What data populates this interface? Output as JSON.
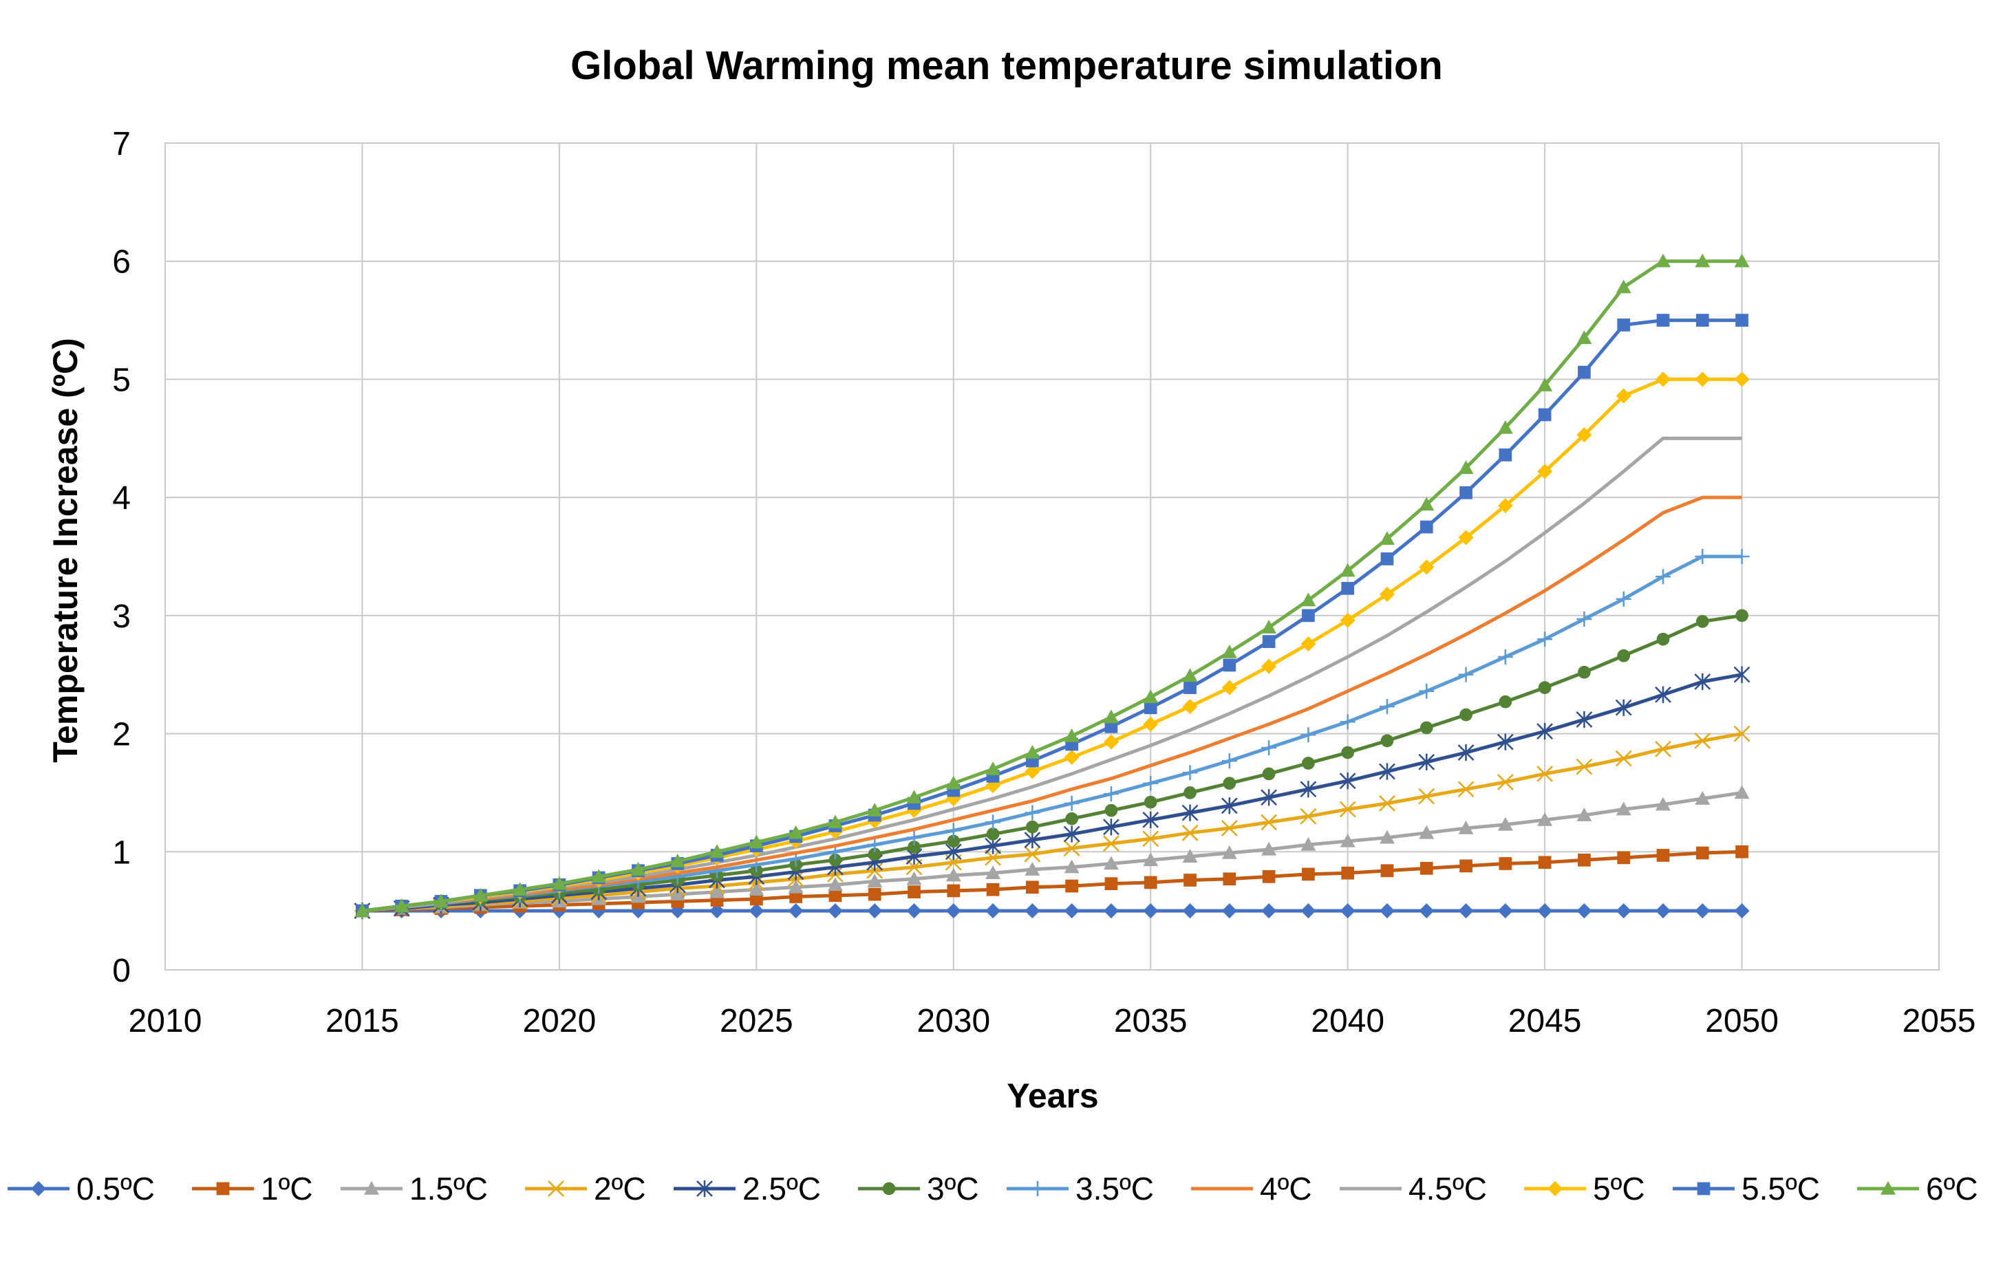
{
  "chart_data": {
    "type": "line",
    "title": "Global Warming mean temperature simulation",
    "xlabel": "Years",
    "ylabel": "Temperature Increase (ºC)",
    "xlim": [
      2010,
      2055
    ],
    "ylim": [
      0,
      7
    ],
    "x_ticks": [
      "2010",
      "2015",
      "2020",
      "2025",
      "2030",
      "2035",
      "2040",
      "2045",
      "2050",
      "2055"
    ],
    "y_ticks": [
      "0",
      "1",
      "2",
      "3",
      "4",
      "5",
      "6",
      "7"
    ],
    "grid": true,
    "legend_position": "bottom",
    "x": [
      2015,
      2016,
      2017,
      2018,
      2019,
      2020,
      2021,
      2022,
      2023,
      2024,
      2025,
      2026,
      2027,
      2028,
      2029,
      2030,
      2031,
      2032,
      2033,
      2034,
      2035,
      2036,
      2037,
      2038,
      2039,
      2040,
      2041,
      2042,
      2043,
      2044,
      2045,
      2046,
      2047,
      2048,
      2049,
      2050
    ],
    "series": [
      {
        "name": "0.5ºC",
        "color": "#4472C4",
        "marker": "diamond",
        "values": [
          0.5,
          0.5,
          0.5,
          0.5,
          0.5,
          0.5,
          0.5,
          0.5,
          0.5,
          0.5,
          0.5,
          0.5,
          0.5,
          0.5,
          0.5,
          0.5,
          0.5,
          0.5,
          0.5,
          0.5,
          0.5,
          0.5,
          0.5,
          0.5,
          0.5,
          0.5,
          0.5,
          0.5,
          0.5,
          0.5,
          0.5,
          0.5,
          0.5,
          0.5,
          0.5,
          0.5
        ]
      },
      {
        "name": "1ºC",
        "color": "#C55A11",
        "marker": "square",
        "values": [
          0.5,
          0.51,
          0.52,
          0.53,
          0.54,
          0.55,
          0.56,
          0.57,
          0.58,
          0.59,
          0.6,
          0.62,
          0.63,
          0.64,
          0.66,
          0.67,
          0.68,
          0.7,
          0.71,
          0.73,
          0.74,
          0.76,
          0.77,
          0.79,
          0.81,
          0.82,
          0.84,
          0.86,
          0.88,
          0.9,
          0.91,
          0.93,
          0.95,
          0.97,
          0.99,
          1.0
        ]
      },
      {
        "name": "1.5ºC",
        "color": "#A5A5A5",
        "marker": "triangle",
        "values": [
          0.5,
          0.52,
          0.53,
          0.55,
          0.57,
          0.58,
          0.6,
          0.62,
          0.64,
          0.66,
          0.68,
          0.7,
          0.72,
          0.75,
          0.77,
          0.8,
          0.82,
          0.85,
          0.87,
          0.9,
          0.93,
          0.96,
          0.99,
          1.02,
          1.06,
          1.09,
          1.12,
          1.16,
          1.2,
          1.23,
          1.27,
          1.31,
          1.36,
          1.4,
          1.45,
          1.5
        ]
      },
      {
        "name": "2ºC",
        "color": "#E6A817",
        "marker": "x",
        "values": [
          0.5,
          0.52,
          0.54,
          0.56,
          0.58,
          0.61,
          0.63,
          0.66,
          0.69,
          0.71,
          0.74,
          0.77,
          0.81,
          0.84,
          0.87,
          0.91,
          0.95,
          0.98,
          1.03,
          1.07,
          1.11,
          1.16,
          1.2,
          1.25,
          1.3,
          1.36,
          1.41,
          1.47,
          1.53,
          1.59,
          1.66,
          1.72,
          1.79,
          1.87,
          1.94,
          2.0
        ]
      },
      {
        "name": "2.5ºC",
        "color": "#2F4F8F",
        "marker": "star",
        "values": [
          0.5,
          0.52,
          0.55,
          0.57,
          0.6,
          0.63,
          0.66,
          0.69,
          0.72,
          0.76,
          0.79,
          0.83,
          0.87,
          0.91,
          0.96,
          1.0,
          1.05,
          1.1,
          1.15,
          1.21,
          1.27,
          1.33,
          1.39,
          1.46,
          1.53,
          1.6,
          1.68,
          1.76,
          1.84,
          1.93,
          2.02,
          2.12,
          2.22,
          2.33,
          2.44,
          2.5
        ]
      },
      {
        "name": "3ºC",
        "color": "#548235",
        "marker": "circle",
        "values": [
          0.5,
          0.53,
          0.56,
          0.59,
          0.62,
          0.65,
          0.68,
          0.72,
          0.76,
          0.8,
          0.84,
          0.89,
          0.93,
          0.98,
          1.04,
          1.09,
          1.15,
          1.21,
          1.28,
          1.35,
          1.42,
          1.5,
          1.58,
          1.66,
          1.75,
          1.84,
          1.94,
          2.05,
          2.16,
          2.27,
          2.39,
          2.52,
          2.66,
          2.8,
          2.95,
          3.0
        ]
      },
      {
        "name": "3.5ºC",
        "color": "#5B9BD5",
        "marker": "plus",
        "values": [
          0.5,
          0.53,
          0.56,
          0.6,
          0.63,
          0.67,
          0.71,
          0.75,
          0.79,
          0.84,
          0.89,
          0.94,
          1.0,
          1.06,
          1.12,
          1.18,
          1.25,
          1.33,
          1.41,
          1.49,
          1.58,
          1.67,
          1.77,
          1.88,
          1.99,
          2.1,
          2.23,
          2.36,
          2.5,
          2.65,
          2.8,
          2.97,
          3.14,
          3.33,
          3.5,
          3.5
        ]
      },
      {
        "name": "4ºC",
        "color": "#ED7D31",
        "marker": "none",
        "values": [
          0.5,
          0.53,
          0.57,
          0.6,
          0.64,
          0.68,
          0.72,
          0.77,
          0.82,
          0.87,
          0.93,
          0.99,
          1.05,
          1.12,
          1.19,
          1.27,
          1.35,
          1.43,
          1.53,
          1.62,
          1.73,
          1.84,
          1.96,
          2.08,
          2.21,
          2.36,
          2.51,
          2.67,
          2.84,
          3.02,
          3.21,
          3.42,
          3.64,
          3.87,
          4.0,
          4.0
        ]
      },
      {
        "name": "4.5ºC",
        "color": "#A5A5A5",
        "marker": "none",
        "values": [
          0.5,
          0.53,
          0.57,
          0.61,
          0.65,
          0.7,
          0.74,
          0.79,
          0.85,
          0.91,
          0.97,
          1.04,
          1.11,
          1.19,
          1.27,
          1.36,
          1.45,
          1.55,
          1.66,
          1.78,
          1.9,
          2.03,
          2.17,
          2.32,
          2.48,
          2.65,
          2.83,
          3.03,
          3.24,
          3.46,
          3.7,
          3.95,
          4.22,
          4.5,
          4.5,
          4.5
        ]
      },
      {
        "name": "5ºC",
        "color": "#FFC000",
        "marker": "diamond",
        "values": [
          0.5,
          0.54,
          0.58,
          0.62,
          0.66,
          0.71,
          0.76,
          0.82,
          0.88,
          0.95,
          1.02,
          1.09,
          1.17,
          1.26,
          1.35,
          1.45,
          1.56,
          1.68,
          1.8,
          1.93,
          2.08,
          2.23,
          2.39,
          2.57,
          2.76,
          2.96,
          3.18,
          3.41,
          3.66,
          3.93,
          4.22,
          4.53,
          4.86,
          5.0,
          5.0,
          5.0
        ]
      },
      {
        "name": "5.5ºC",
        "color": "#4472C4",
        "marker": "square",
        "values": [
          0.5,
          0.54,
          0.58,
          0.63,
          0.67,
          0.72,
          0.78,
          0.84,
          0.9,
          0.97,
          1.05,
          1.13,
          1.22,
          1.31,
          1.41,
          1.52,
          1.64,
          1.77,
          1.91,
          2.06,
          2.22,
          2.39,
          2.58,
          2.78,
          3.0,
          3.23,
          3.48,
          3.75,
          4.04,
          4.36,
          4.7,
          5.06,
          5.46,
          5.5,
          5.5,
          5.5
        ]
      },
      {
        "name": "6ºC",
        "color": "#70AD47",
        "marker": "triangle",
        "values": [
          0.5,
          0.54,
          0.58,
          0.63,
          0.68,
          0.73,
          0.79,
          0.85,
          0.92,
          1.0,
          1.08,
          1.16,
          1.25,
          1.35,
          1.46,
          1.58,
          1.7,
          1.84,
          1.98,
          2.14,
          2.31,
          2.49,
          2.69,
          2.9,
          3.13,
          3.38,
          3.65,
          3.94,
          4.25,
          4.59,
          4.95,
          5.35,
          5.78,
          6.0,
          6.0,
          6.0
        ]
      }
    ]
  }
}
